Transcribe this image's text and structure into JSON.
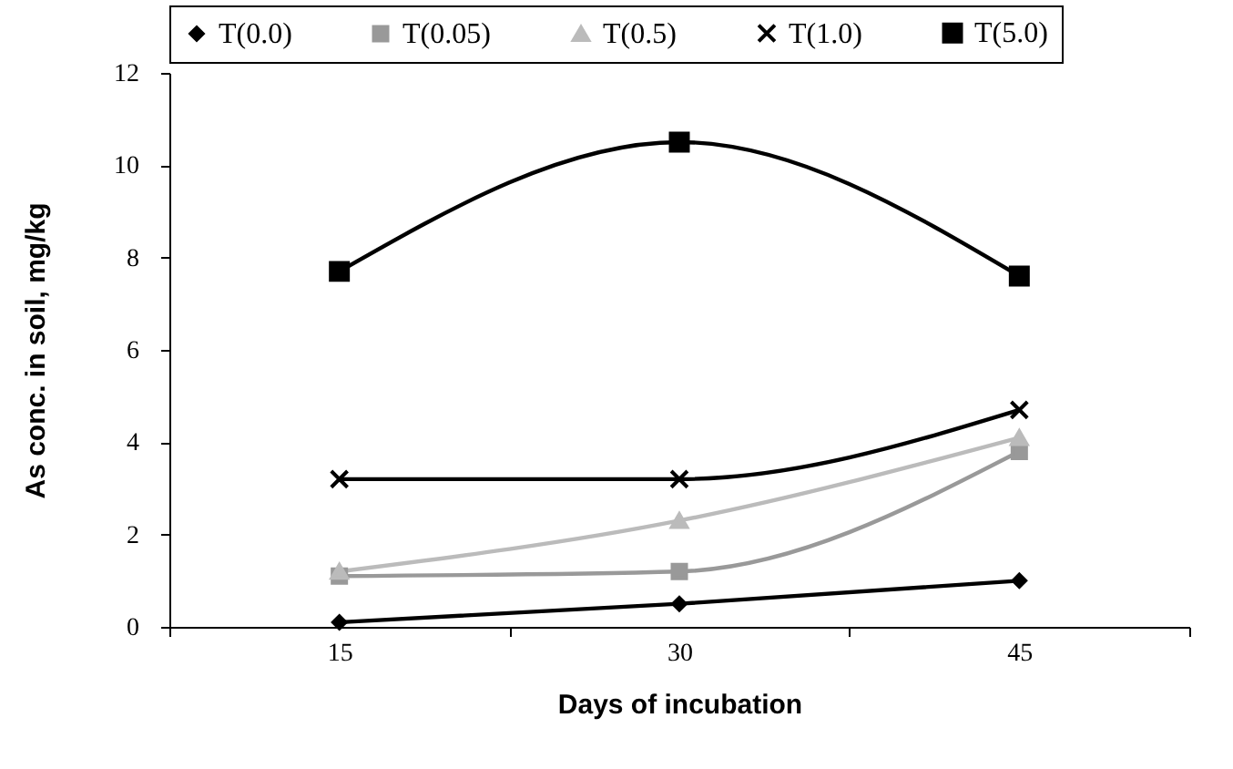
{
  "chart_data": {
    "type": "line",
    "xlabel": "Days of incubation",
    "ylabel": "As conc. in soil, mg/kg",
    "categories": [
      "15",
      "30",
      "45"
    ],
    "ylim": [
      0,
      12
    ],
    "yticks": [
      0,
      2,
      4,
      6,
      8,
      10,
      12
    ],
    "grid": false,
    "legend": "top",
    "series": [
      {
        "name": "T(0.0)",
        "color": "#000000",
        "marker": "diamond",
        "values": [
          0.1,
          0.5,
          1.0
        ]
      },
      {
        "name": "T(0.05)",
        "color": "#999999",
        "marker": "square",
        "values": [
          1.1,
          1.2,
          3.8
        ]
      },
      {
        "name": "T(0.5)",
        "color": "#bbbbbb",
        "marker": "triangle",
        "values": [
          1.2,
          2.3,
          4.1
        ]
      },
      {
        "name": "T(1.0)",
        "color": "#000000",
        "marker": "cross",
        "values": [
          3.2,
          3.2,
          4.7
        ]
      },
      {
        "name": "T(5.0)",
        "color": "#000000",
        "marker": "square",
        "values": [
          7.7,
          10.5,
          7.6
        ]
      }
    ]
  }
}
